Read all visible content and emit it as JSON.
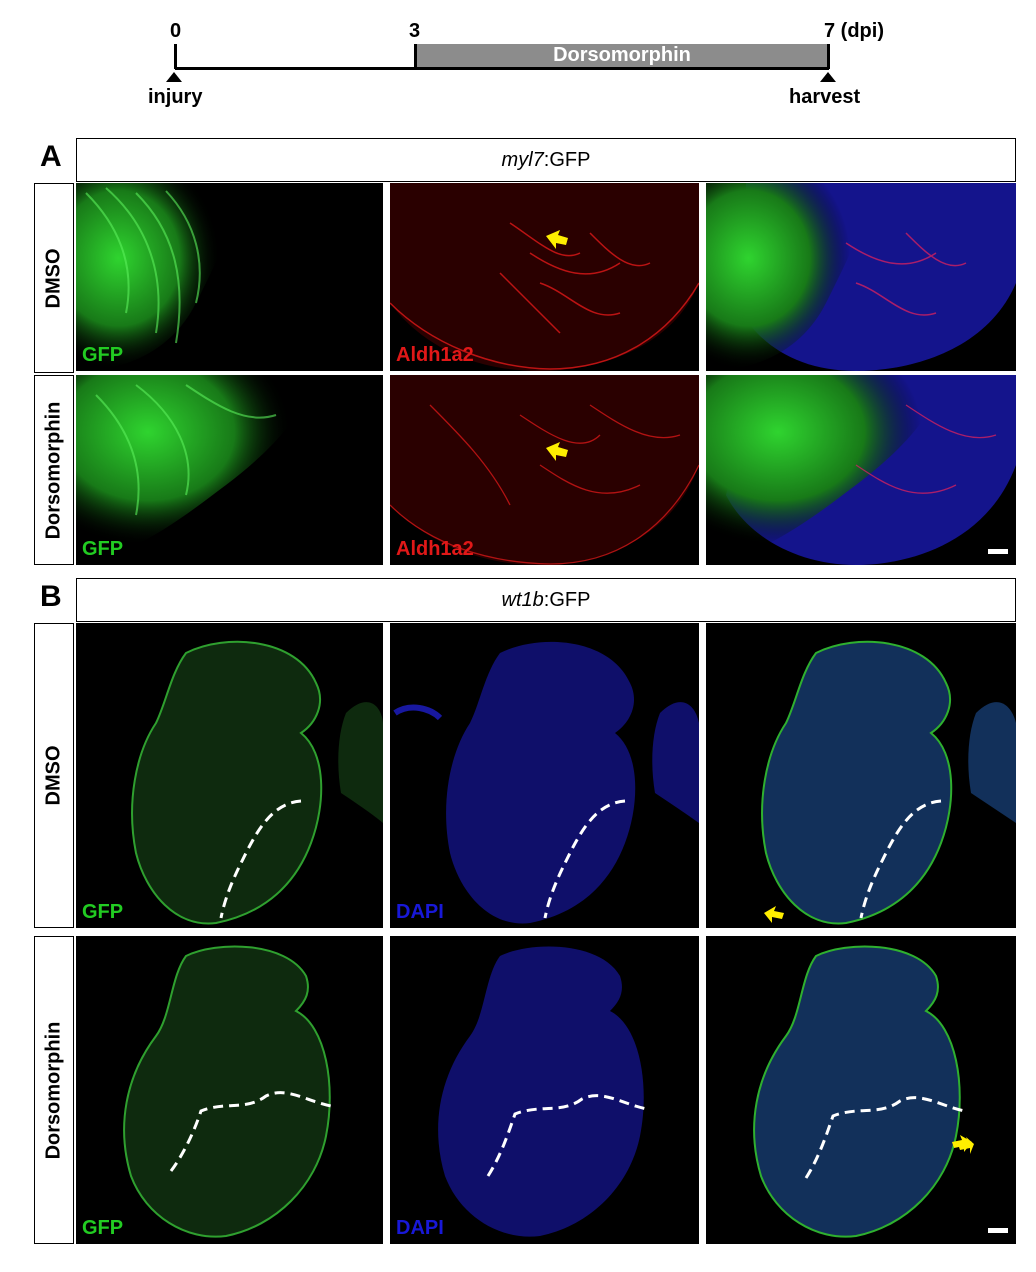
{
  "timeline": {
    "day0": "0",
    "day3": "3",
    "day7": "7 (dpi)",
    "treatment": "Dorsomorphin",
    "start_event": "injury",
    "end_event": "harvest"
  },
  "panelA": {
    "letter": "A",
    "header_italic": "myl7",
    "header_rest": ":GFP",
    "rows": [
      "DMSO",
      "Dorsomorphin"
    ],
    "channel_labels": [
      "GFP",
      "Aldh1a2"
    ]
  },
  "panelB": {
    "letter": "B",
    "header_italic": "wt1b",
    "header_rest": ":GFP",
    "rows": [
      "DMSO",
      "Dorsomorphin"
    ],
    "channel_labels": [
      "GFP",
      "DAPI"
    ]
  },
  "colors": {
    "gfp": "#22cc22",
    "aldh": "#e01818",
    "dapi": "#1818d8",
    "arrow": "#ffee00",
    "treatment_bar": "#8c8c8c"
  }
}
